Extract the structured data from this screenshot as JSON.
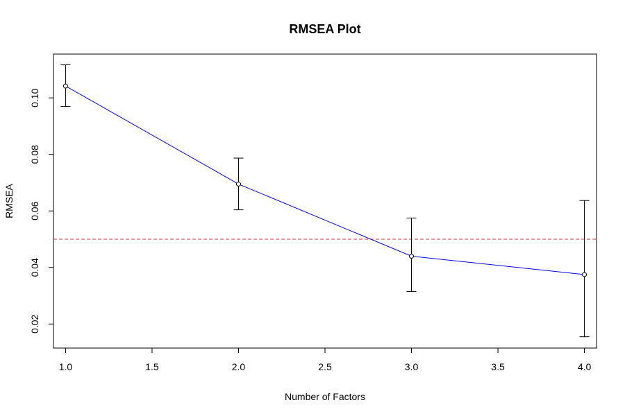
{
  "chart_data": {
    "type": "line",
    "title": "RMSEA Plot",
    "xlabel": "Number of Factors",
    "ylabel": "RMSEA",
    "xlim": [
      0.93,
      4.07
    ],
    "ylim": [
      0.0115,
      0.1155
    ],
    "x_ticks": [
      1.0,
      1.5,
      2.0,
      2.5,
      3.0,
      3.5,
      4.0
    ],
    "x_tick_labels": [
      "1.0",
      "1.5",
      "2.0",
      "2.5",
      "3.0",
      "3.5",
      "4.0"
    ],
    "y_ticks": [
      0.02,
      0.04,
      0.06,
      0.08,
      0.1
    ],
    "y_tick_labels": [
      "0.02",
      "0.04",
      "0.06",
      "0.08",
      "0.10"
    ],
    "grid": false,
    "series": [
      {
        "x": [
          1,
          2,
          3,
          4
        ],
        "values": [
          0.1042,
          0.0695,
          0.044,
          0.0375
        ],
        "error_low": [
          0.097,
          0.0604,
          0.0315,
          0.0155
        ],
        "error_high": [
          0.1117,
          0.0787,
          0.0575,
          0.0637
        ],
        "color": "#0000ff",
        "marker": "open-circle"
      }
    ],
    "reference_line": {
      "y": 0.05,
      "color": "#e8262b",
      "style": "dashed"
    }
  }
}
